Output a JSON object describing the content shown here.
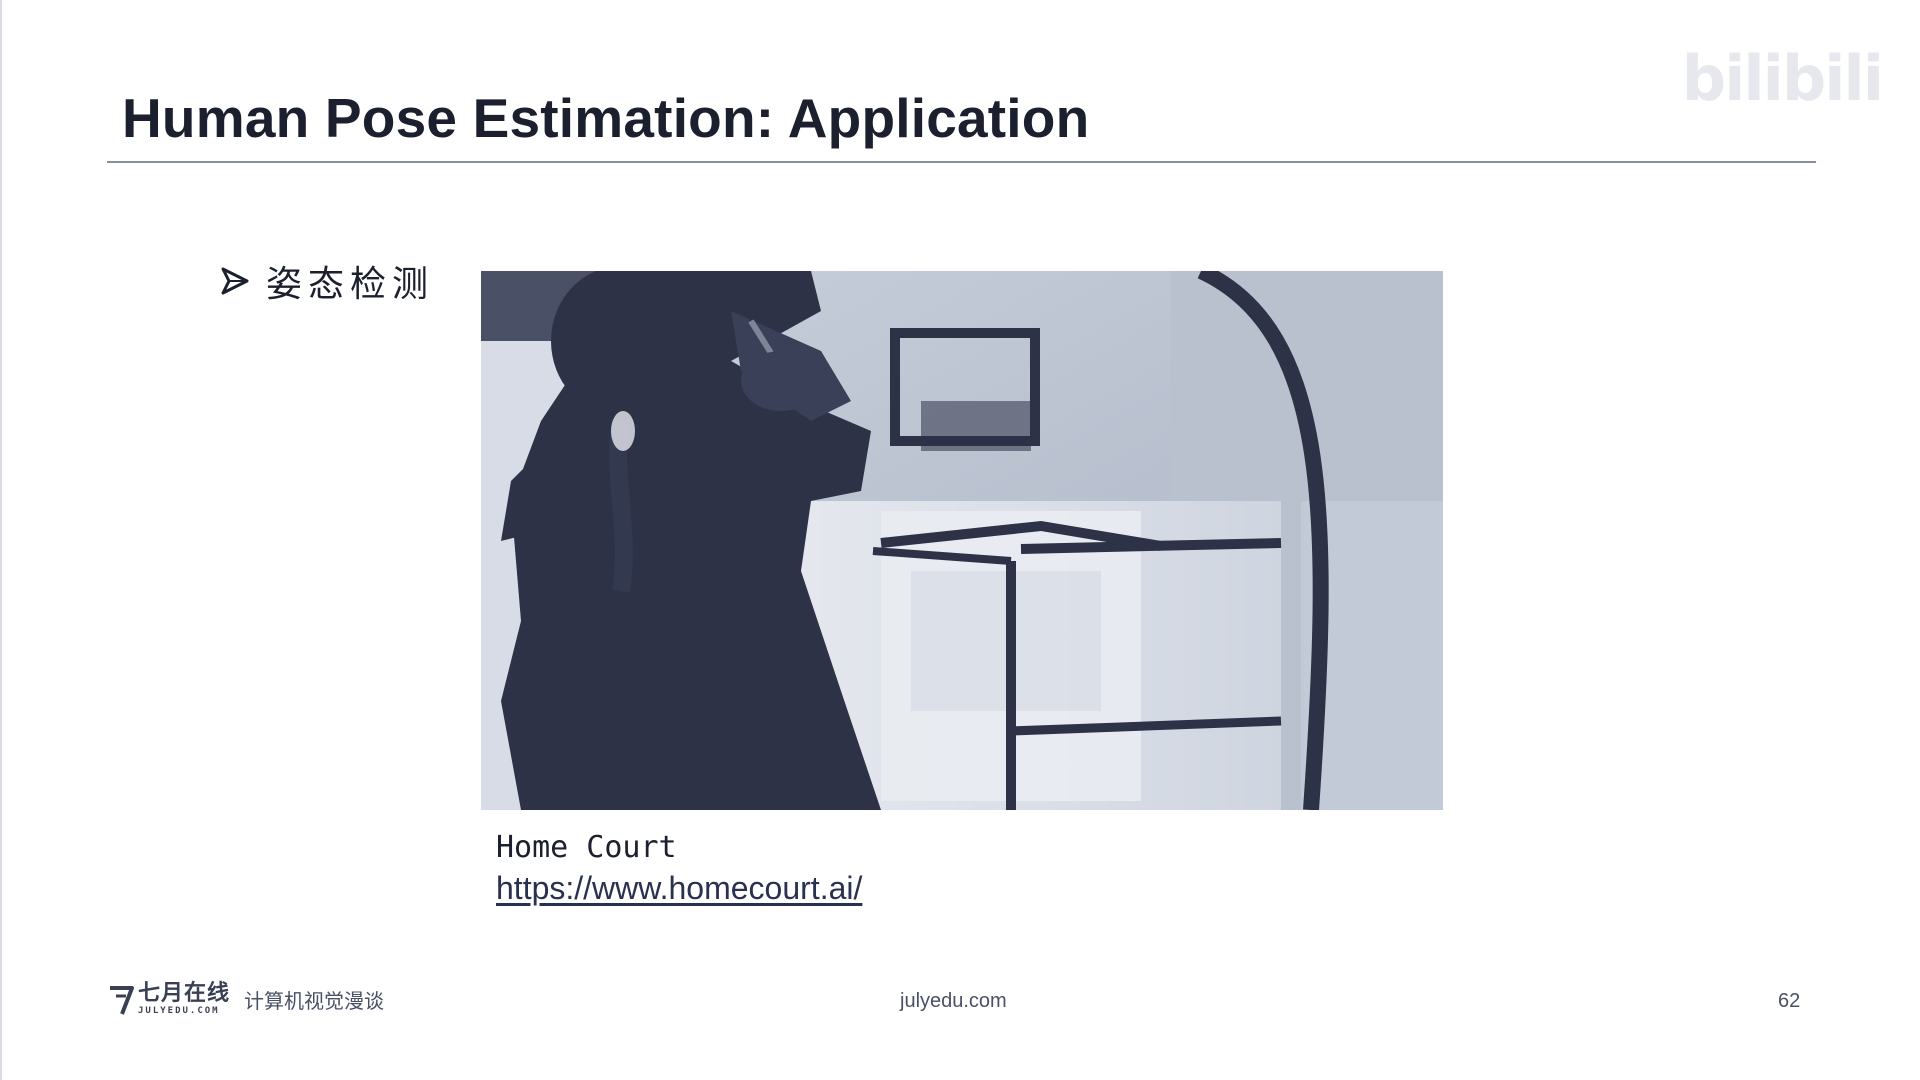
{
  "watermark": {
    "text": "bilibili"
  },
  "slide": {
    "title": "Human Pose Estimation: Application",
    "bullet": {
      "icon": "arrow-bullet-icon",
      "text": "姿态检测"
    },
    "figure": {
      "caption": "Home Court",
      "link": "https://www.homecourt.ai/"
    }
  },
  "footer": {
    "logo_cn": "七月在线",
    "logo_en": "JULYEDU.COM",
    "logo_sub": "计算机视觉漫谈",
    "site": "julyedu.com",
    "page_number": "62"
  },
  "colors": {
    "text": "#1b1f2e",
    "figure_dark": "#2d3247",
    "figure_light": "#dfe3ec",
    "rule": "#8a8f9e"
  }
}
